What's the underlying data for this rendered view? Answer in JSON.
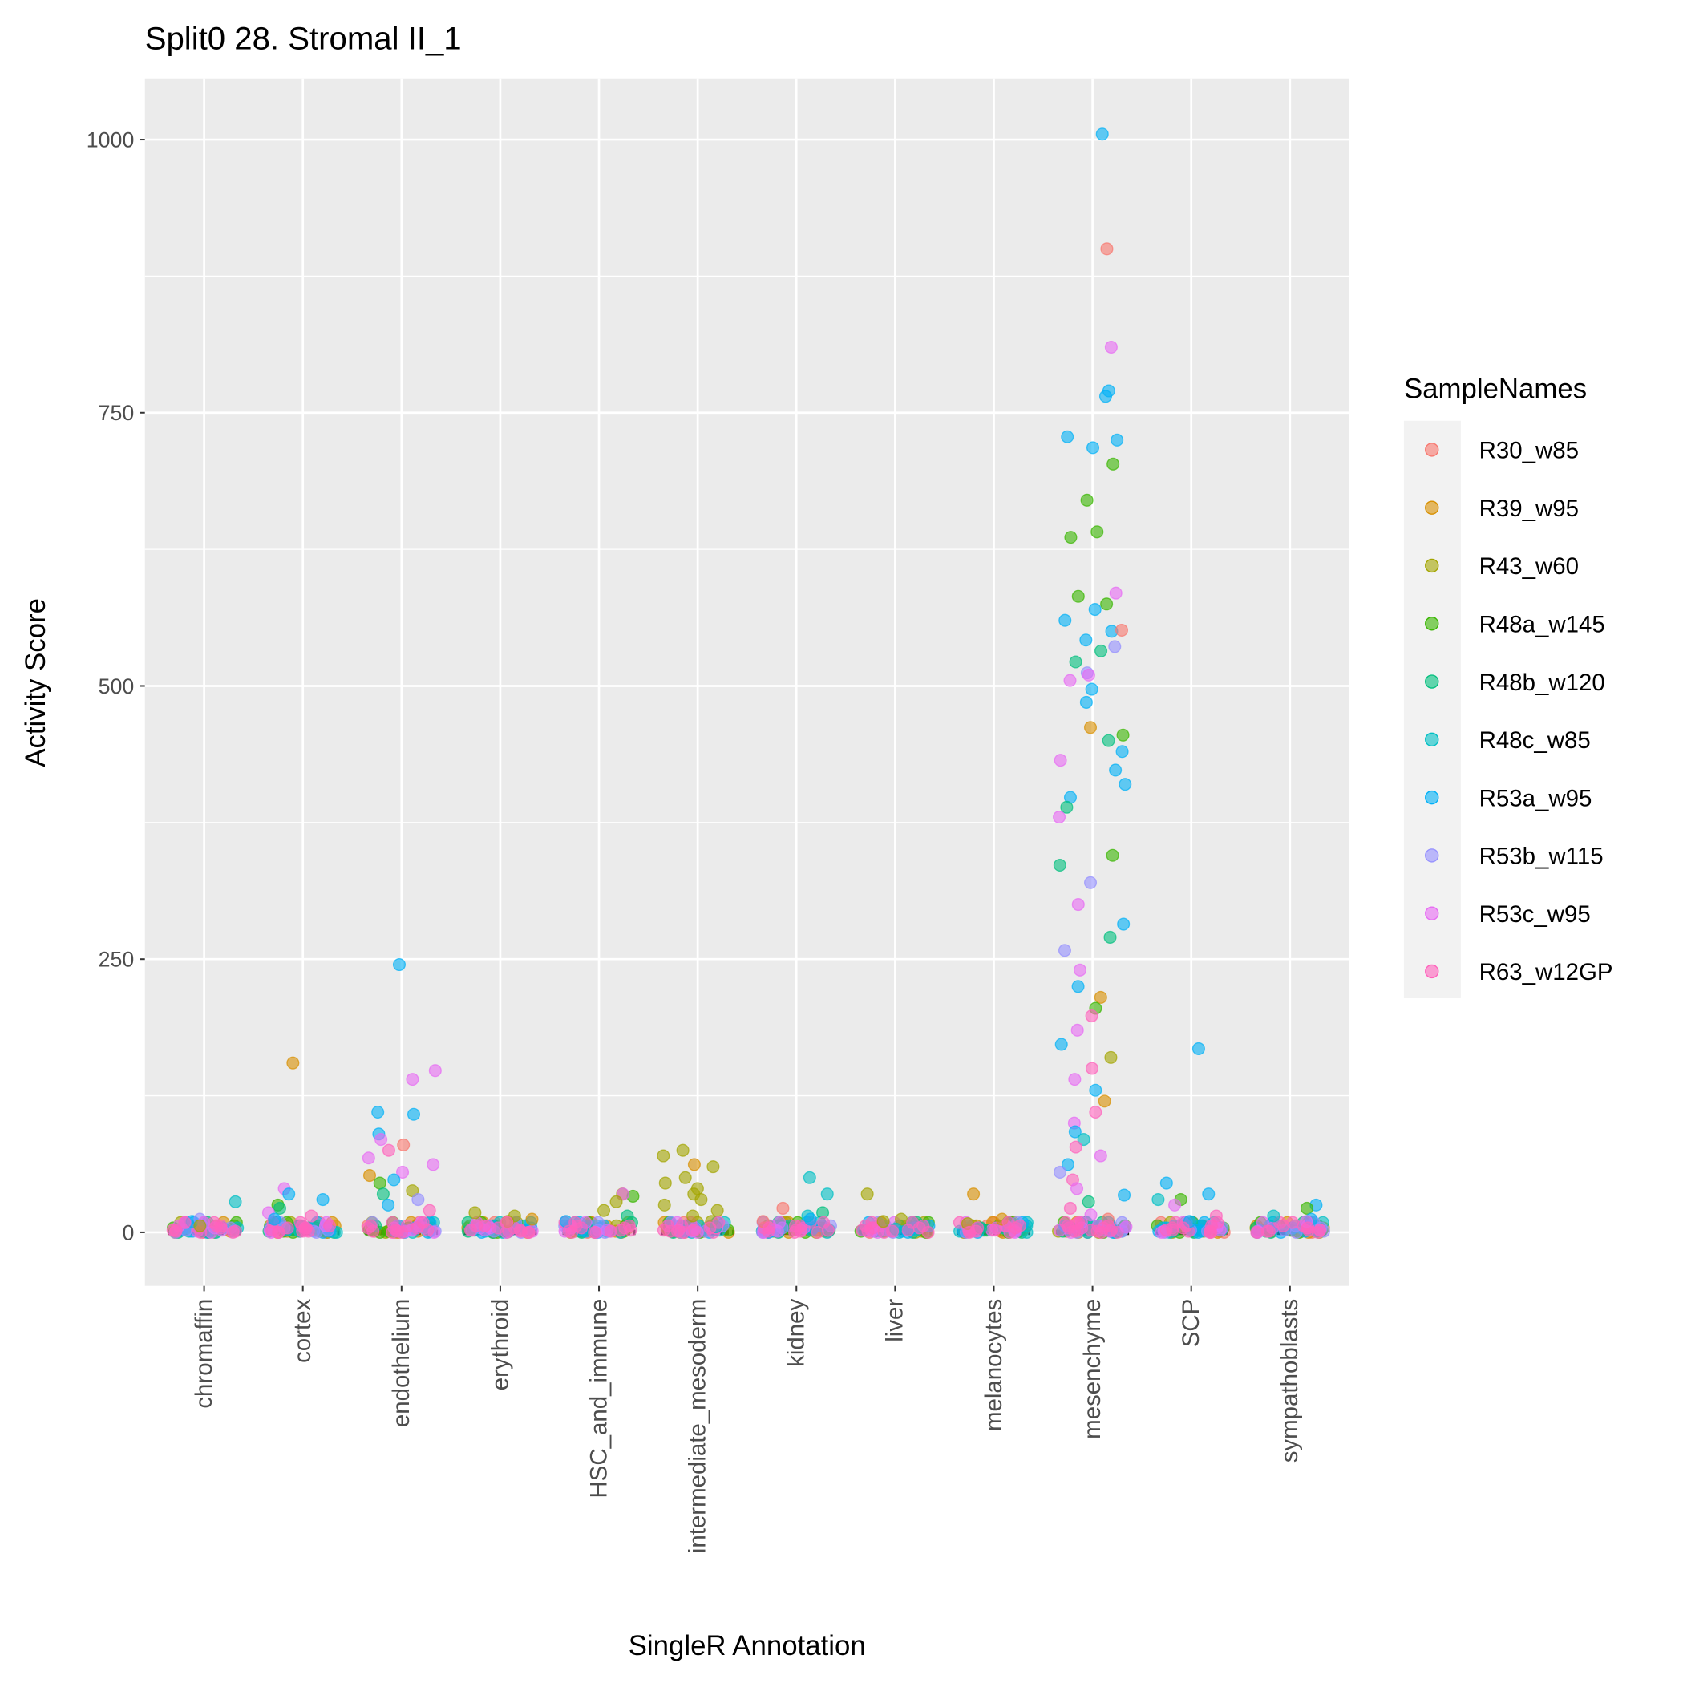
{
  "chart_data": {
    "type": "scatter",
    "title": "Split0 28. Stromal II_1",
    "xlabel": "SingleR Annotation",
    "ylabel": "Activity Score",
    "ylim": [
      -49,
      1056
    ],
    "yticks": [
      0,
      250,
      500,
      750,
      1000
    ],
    "ytick_labels": [
      "0",
      "250",
      "500",
      "750",
      "1000"
    ],
    "categories": [
      "chromaffin",
      "cortex",
      "endothelium",
      "erythroid",
      "HSC_and_immune",
      "intermediate_mesoderm",
      "kidney",
      "liver",
      "melanocytes",
      "mesenchyme",
      "SCP",
      "sympathoblasts"
    ],
    "grid": true,
    "legend": {
      "title": "SampleNames",
      "placement": "right",
      "entries": [
        "R30_w85",
        "R39_w95",
        "R43_w60",
        "R48a_w145",
        "R48b_w120",
        "R48c_w85",
        "R53a_w95",
        "R53b_w115",
        "R53c_w95",
        "R63_w12GP"
      ],
      "colors": [
        "#F8766D",
        "#D89000",
        "#A3A500",
        "#39B600",
        "#00BF7D",
        "#00BFC4",
        "#00B0F6",
        "#9590FF",
        "#E76BF3",
        "#FF62BC"
      ]
    },
    "baseline_values": [
      0,
      1,
      2,
      4,
      6,
      9
    ],
    "points": {
      "chromaffin": [
        [
          5,
          28
        ],
        [
          6,
          10
        ],
        [
          7,
          12
        ],
        [
          8,
          9
        ],
        [
          2,
          6
        ]
      ],
      "cortex": [
        [
          1,
          155
        ],
        [
          8,
          40
        ],
        [
          6,
          35
        ],
        [
          6,
          30
        ],
        [
          3,
          25
        ],
        [
          4,
          22
        ],
        [
          8,
          18
        ],
        [
          9,
          15
        ],
        [
          6,
          12
        ]
      ],
      "endothelium": [
        [
          6,
          245
        ],
        [
          8,
          148
        ],
        [
          8,
          140
        ],
        [
          6,
          110
        ],
        [
          6,
          108
        ],
        [
          6,
          90
        ],
        [
          8,
          85
        ],
        [
          0,
          80
        ],
        [
          9,
          75
        ],
        [
          8,
          68
        ],
        [
          8,
          62
        ],
        [
          8,
          55
        ],
        [
          1,
          52
        ],
        [
          6,
          48
        ],
        [
          3,
          45
        ],
        [
          2,
          38
        ],
        [
          4,
          35
        ],
        [
          7,
          30
        ],
        [
          6,
          25
        ],
        [
          9,
          20
        ]
      ],
      "erythroid": [
        [
          2,
          18
        ],
        [
          2,
          15
        ],
        [
          1,
          12
        ],
        [
          2,
          10
        ]
      ],
      "HSC_and_immune": [
        [
          2,
          35
        ],
        [
          3,
          33
        ],
        [
          8,
          35
        ],
        [
          2,
          28
        ],
        [
          2,
          20
        ],
        [
          4,
          15
        ],
        [
          6,
          10
        ]
      ],
      "intermediate_mesoderm": [
        [
          2,
          75
        ],
        [
          2,
          70
        ],
        [
          1,
          62
        ],
        [
          2,
          60
        ],
        [
          2,
          50
        ],
        [
          2,
          45
        ],
        [
          2,
          40
        ],
        [
          2,
          35
        ],
        [
          2,
          30
        ],
        [
          2,
          25
        ],
        [
          2,
          20
        ],
        [
          2,
          15
        ],
        [
          2,
          10
        ],
        [
          5,
          5
        ]
      ],
      "kidney": [
        [
          5,
          50
        ],
        [
          5,
          35
        ],
        [
          0,
          22
        ],
        [
          4,
          18
        ],
        [
          5,
          15
        ],
        [
          6,
          12
        ],
        [
          0,
          10
        ]
      ],
      "liver": [
        [
          2,
          35
        ],
        [
          2,
          12
        ],
        [
          2,
          10
        ],
        [
          5,
          3
        ]
      ],
      "melanocytes": [
        [
          1,
          35
        ],
        [
          1,
          12
        ],
        [
          2,
          8
        ],
        [
          4,
          4
        ]
      ],
      "mesenchyme": [
        [
          6,
          1005
        ],
        [
          0,
          900
        ],
        [
          8,
          810
        ],
        [
          6,
          770
        ],
        [
          6,
          765
        ],
        [
          6,
          728
        ],
        [
          6,
          725
        ],
        [
          6,
          718
        ],
        [
          3,
          703
        ],
        [
          3,
          670
        ],
        [
          3,
          641
        ],
        [
          3,
          636
        ],
        [
          8,
          585
        ],
        [
          3,
          582
        ],
        [
          3,
          575
        ],
        [
          6,
          570
        ],
        [
          6,
          560
        ],
        [
          6,
          550
        ],
        [
          0,
          551
        ],
        [
          6,
          542
        ],
        [
          7,
          536
        ],
        [
          7,
          512
        ],
        [
          4,
          532
        ],
        [
          4,
          522
        ],
        [
          8,
          510
        ],
        [
          8,
          505
        ],
        [
          6,
          497
        ],
        [
          6,
          485
        ],
        [
          1,
          462
        ],
        [
          3,
          455
        ],
        [
          4,
          450
        ],
        [
          6,
          440
        ],
        [
          8,
          432
        ],
        [
          6,
          423
        ],
        [
          6,
          410
        ],
        [
          6,
          398
        ],
        [
          4,
          389
        ],
        [
          8,
          380
        ],
        [
          3,
          345
        ],
        [
          4,
          336
        ],
        [
          7,
          320
        ],
        [
          8,
          300
        ],
        [
          6,
          282
        ],
        [
          4,
          270
        ],
        [
          7,
          258
        ],
        [
          8,
          240
        ],
        [
          6,
          225
        ],
        [
          1,
          215
        ],
        [
          3,
          205
        ],
        [
          9,
          198
        ],
        [
          8,
          185
        ],
        [
          6,
          172
        ],
        [
          2,
          160
        ],
        [
          9,
          150
        ],
        [
          8,
          140
        ],
        [
          6,
          130
        ],
        [
          1,
          120
        ],
        [
          9,
          110
        ],
        [
          8,
          100
        ],
        [
          6,
          92
        ],
        [
          5,
          85
        ],
        [
          9,
          78
        ],
        [
          8,
          70
        ],
        [
          6,
          62
        ],
        [
          7,
          55
        ],
        [
          9,
          48
        ],
        [
          8,
          40
        ],
        [
          6,
          34
        ],
        [
          4,
          28
        ],
        [
          9,
          22
        ],
        [
          8,
          16
        ],
        [
          0,
          12
        ],
        [
          9,
          8
        ],
        [
          8,
          5
        ],
        [
          9,
          2
        ]
      ],
      "SCP": [
        [
          6,
          168
        ],
        [
          6,
          45
        ],
        [
          6,
          35
        ],
        [
          3,
          30
        ],
        [
          5,
          30
        ],
        [
          8,
          25
        ],
        [
          9,
          15
        ],
        [
          6,
          10
        ]
      ],
      "sympathoblasts": [
        [
          6,
          25
        ],
        [
          3,
          22
        ],
        [
          5,
          15
        ],
        [
          6,
          12
        ],
        [
          8,
          10
        ]
      ]
    }
  }
}
